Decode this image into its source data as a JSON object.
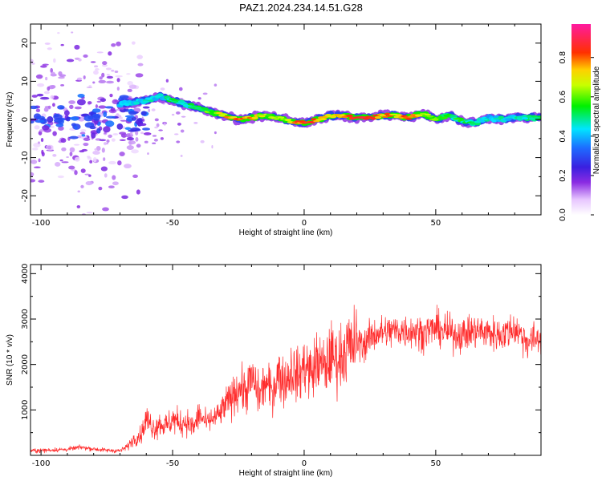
{
  "title": "PAZ1.2024.234.14.51.G28",
  "colors": {
    "snr_line": "#ff2d2d",
    "axis": "#000000",
    "background": "#ffffff"
  },
  "chart_data": [
    {
      "type": "heatmap",
      "xlabel": "Height of straight line (km)",
      "ylabel": "Frequency (Hz)",
      "xlim": [
        -104,
        90
      ],
      "ylim": [
        -25,
        25
      ],
      "xticks": [
        -100,
        -50,
        0,
        50
      ],
      "yticks": [
        -20,
        -10,
        0,
        10,
        20
      ],
      "colorbar": {
        "label": "Normalized spectral amplitude",
        "range": [
          0.0,
          0.97
        ],
        "ticks": [
          0.0,
          0.2,
          0.4,
          0.6,
          0.8
        ],
        "tick_labels": [
          "0.0",
          "0.2",
          "0.4",
          "0.6",
          "0.8"
        ],
        "colormap": "rainbow (white-purple-blue-cyan-green-yellow-red-magenta)"
      },
      "ridge": {
        "description": "dominant frequency ridge (Hz) vs height (km)",
        "x": [
          -70,
          -60,
          -55,
          -50,
          -45,
          -40,
          -35,
          -30,
          -25,
          -20,
          -15,
          -10,
          -5,
          0,
          5,
          10,
          15,
          20,
          25,
          30,
          35,
          40,
          45,
          50,
          55,
          60,
          65,
          70,
          75,
          80,
          85,
          90
        ],
        "y": [
          4,
          5,
          6,
          5,
          4,
          3,
          2,
          1,
          0,
          0.5,
          1,
          0.5,
          -0.5,
          -1,
          0,
          1,
          1,
          0.5,
          0.5,
          1,
          1,
          0.5,
          1.5,
          0,
          1,
          -0.5,
          -1,
          0.5,
          0,
          0.5,
          0.5,
          0.5
        ],
        "amplitude": [
          0.35,
          0.4,
          0.4,
          0.5,
          0.45,
          0.55,
          0.6,
          0.75,
          0.8,
          0.75,
          0.7,
          0.6,
          0.75,
          0.9,
          0.8,
          0.75,
          0.8,
          0.85,
          0.9,
          0.8,
          0.75,
          0.85,
          0.7,
          0.6,
          0.5,
          0.55,
          0.45,
          0.4,
          0.45,
          0.4,
          0.45,
          0.5
        ]
      }
    },
    {
      "type": "line",
      "xlabel": "Height of straight line (km)",
      "ylabel": "SNR (10 * v/v)",
      "xlim": [
        -104,
        90
      ],
      "ylim": [
        0,
        4200
      ],
      "xticks": [
        -100,
        -50,
        0,
        50
      ],
      "yticks": [
        1000,
        2000,
        3000,
        4000
      ],
      "series": [
        {
          "x": [
            -104,
            -95,
            -90,
            -85,
            -80,
            -75,
            -70,
            -67,
            -65,
            -62,
            -60,
            -57,
            -55,
            -52,
            -50,
            -47,
            -45,
            -42,
            -40,
            -37,
            -35,
            -32,
            -30,
            -27,
            -25,
            -22,
            -20,
            -17,
            -15,
            -12,
            -10,
            -7,
            -5,
            -2,
            0,
            3,
            5,
            8,
            10,
            13,
            15,
            18,
            20,
            23,
            25,
            28,
            30,
            35,
            40,
            45,
            50,
            55,
            60,
            65,
            70,
            75,
            80,
            85,
            90
          ],
          "y": [
            100,
            120,
            130,
            180,
            140,
            110,
            100,
            200,
            350,
            450,
            800,
            600,
            700,
            650,
            800,
            700,
            750,
            600,
            900,
            700,
            800,
            900,
            1100,
            1300,
            1500,
            1400,
            1700,
            1300,
            1600,
            1400,
            1800,
            1600,
            1900,
            1700,
            2000,
            1800,
            2100,
            1900,
            2200,
            2100,
            2300,
            2400,
            2500,
            2450,
            2600,
            2700,
            2700,
            2750,
            2750,
            2700,
            2800,
            2700,
            2650,
            2750,
            2700,
            2650,
            2800,
            2500,
            2600
          ]
        }
      ]
    }
  ]
}
